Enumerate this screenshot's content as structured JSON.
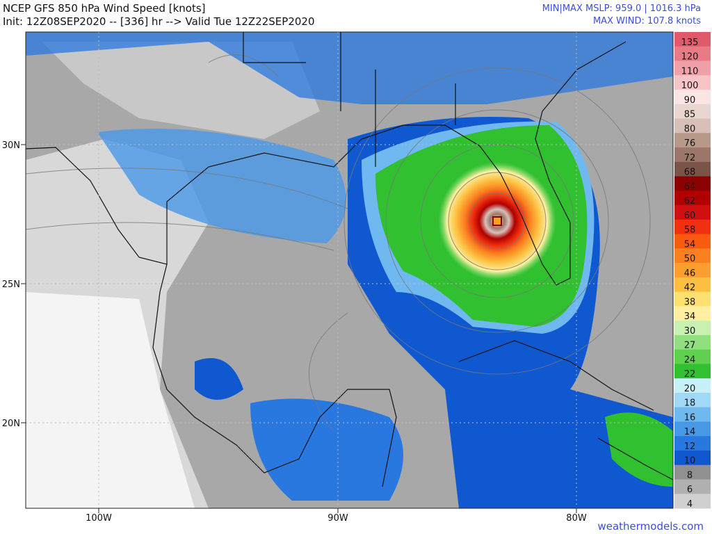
{
  "header": {
    "title": "NCEP GFS 850 hPa Wind Speed [knots]",
    "subtitle": "Init: 12Z08SEP2020 -- [336] hr --> Valid Tue 12Z22SEP2020",
    "pressure_stat": "MIN|MAX MSLP: 959.0 | 1016.3 hPa",
    "wind_stat": "MAX WIND: 107.8 knots"
  },
  "colorbar": {
    "levels": [
      135,
      120,
      110,
      100,
      90,
      85,
      80,
      76,
      72,
      68,
      64,
      62,
      60,
      58,
      54,
      50,
      46,
      42,
      38,
      34,
      30,
      27,
      24,
      22,
      20,
      18,
      16,
      14,
      12,
      10,
      8,
      6,
      4
    ],
    "colors": [
      "#e05a6a",
      "#e87c84",
      "#f0a0a8",
      "#f8c4c8",
      "#fbe4e4",
      "#e8d6d0",
      "#d8c0b8",
      "#b89888",
      "#9c7668",
      "#7a5448",
      "#8b0000",
      "#b00000",
      "#d01010",
      "#f03010",
      "#f85a10",
      "#fa8020",
      "#fba030",
      "#fcc040",
      "#fde070",
      "#fef0a0",
      "#c8f0b0",
      "#90e080",
      "#60d050",
      "#30c030",
      "#c8f0f8",
      "#a0d8f8",
      "#70b8f0",
      "#4898e8",
      "#2878e0",
      "#1058d0",
      "#909090",
      "#b0b0b0",
      "#d0d0d0"
    ]
  },
  "latitude_labels": [
    "30N",
    "25N",
    "20N"
  ],
  "longitude_labels": [
    "100W",
    "90W",
    "80W"
  ],
  "footer": "weathermodels.com"
}
